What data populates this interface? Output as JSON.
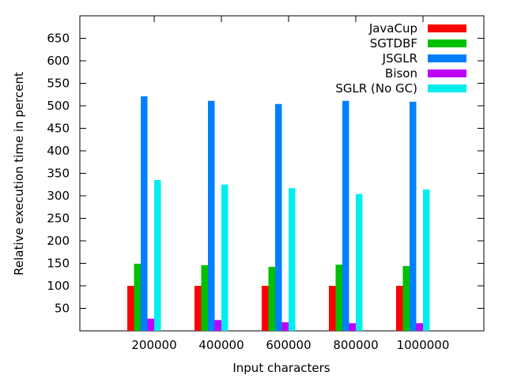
{
  "chart_data": {
    "type": "bar",
    "title": "",
    "xlabel": "Input characters",
    "ylabel": "Relative execution time in percent",
    "categories": [
      "200000",
      "400000",
      "600000",
      "800000",
      "1000000"
    ],
    "ylim": [
      0,
      700
    ],
    "yticks": [
      50,
      100,
      150,
      200,
      250,
      300,
      350,
      400,
      450,
      500,
      550,
      600,
      650
    ],
    "grid": false,
    "legend_position": "top-right",
    "series": [
      {
        "name": "JavaCup",
        "color": "#ff0000",
        "values": [
          100,
          100,
          100,
          100,
          100
        ]
      },
      {
        "name": "SGTDBF",
        "color": "#00c000",
        "values": [
          149,
          146,
          142,
          147,
          144
        ]
      },
      {
        "name": "JSGLR",
        "color": "#0080ff",
        "values": [
          521,
          511,
          504,
          511,
          509
        ]
      },
      {
        "name": "Bison",
        "color": "#c000ff",
        "values": [
          27,
          24,
          19,
          17,
          17
        ]
      },
      {
        "name": "SGLR (No GC)",
        "color": "#00eeee",
        "values": [
          335,
          325,
          317,
          304,
          314
        ]
      }
    ]
  }
}
